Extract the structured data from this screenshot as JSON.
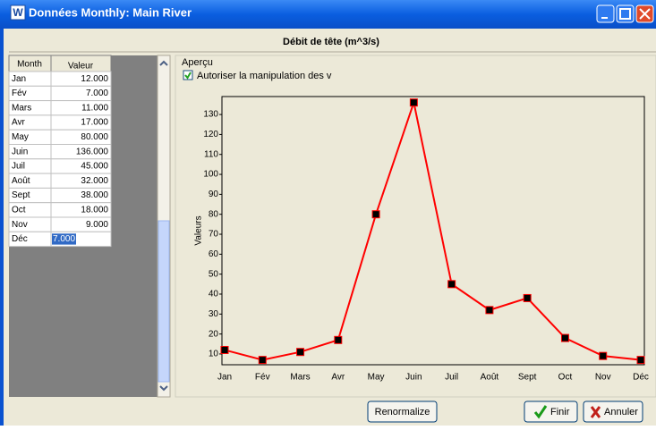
{
  "window": {
    "title": "Données Monthly: Main River",
    "icon": "W"
  },
  "header": "Débit de tête (m^3/s)",
  "table": {
    "columns": [
      "Month",
      "Valeur"
    ],
    "rows": [
      [
        "Jan",
        "12.000"
      ],
      [
        "Fév",
        "7.000"
      ],
      [
        "Mars",
        "11.000"
      ],
      [
        "Avr",
        "17.000"
      ],
      [
        "May",
        "80.000"
      ],
      [
        "Juin",
        "136.000"
      ],
      [
        "Juil",
        "45.000"
      ],
      [
        "Août",
        "32.000"
      ],
      [
        "Sept",
        "38.000"
      ],
      [
        "Oct",
        "18.000"
      ],
      [
        "Nov",
        "9.000"
      ],
      [
        "Déc",
        "7.000"
      ]
    ]
  },
  "preview": {
    "group_label": "Aperçu",
    "checkbox_label": "Autoriser la manipulation des v",
    "checked": true
  },
  "chart_data": {
    "type": "line",
    "ylabel": "Valeurs",
    "categories": [
      "Jan",
      "Fév",
      "Mars",
      "Avr",
      "May",
      "Juin",
      "Juil",
      "Août",
      "Sept",
      "Oct",
      "Nov",
      "Déc"
    ],
    "values": [
      12,
      7,
      11,
      17,
      80,
      136,
      45,
      32,
      38,
      18,
      9,
      7
    ],
    "color": "#ff0000",
    "marker_color": "#000000",
    "ylim": [
      4.6,
      139
    ],
    "yticks": [
      10,
      20,
      30,
      40,
      50,
      60,
      70,
      80,
      90,
      100,
      110,
      120,
      130
    ]
  },
  "buttons": [
    "Renormalize",
    "Finir",
    "Annuler"
  ]
}
